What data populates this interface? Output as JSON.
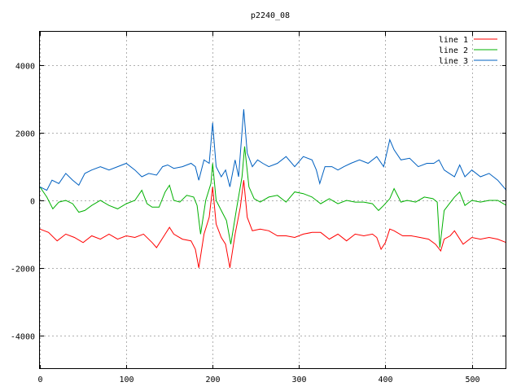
{
  "chart_data": {
    "type": "line",
    "title": "p2240_08",
    "xlabel": "",
    "ylabel": "",
    "xlim": [
      0,
      540
    ],
    "ylim": [
      -5000,
      5000
    ],
    "x_ticks": [
      0,
      100,
      200,
      300,
      400,
      500
    ],
    "y_ticks": [
      -4000,
      -2000,
      0,
      2000,
      4000
    ],
    "grid": true,
    "legend_position": "top-right",
    "series": [
      {
        "name": "line 1",
        "color": "#ff0000",
        "points": [
          [
            0,
            -850
          ],
          [
            10,
            -950
          ],
          [
            20,
            -1200
          ],
          [
            30,
            -1000
          ],
          [
            40,
            -1100
          ],
          [
            50,
            -1250
          ],
          [
            60,
            -1050
          ],
          [
            70,
            -1150
          ],
          [
            80,
            -1000
          ],
          [
            90,
            -1150
          ],
          [
            100,
            -1050
          ],
          [
            110,
            -1100
          ],
          [
            120,
            -1000
          ],
          [
            130,
            -1250
          ],
          [
            135,
            -1400
          ],
          [
            145,
            -1000
          ],
          [
            150,
            -800
          ],
          [
            155,
            -1000
          ],
          [
            165,
            -1150
          ],
          [
            175,
            -1200
          ],
          [
            180,
            -1450
          ],
          [
            184,
            -2000
          ],
          [
            190,
            -1000
          ],
          [
            196,
            -500
          ],
          [
            200,
            400
          ],
          [
            204,
            -700
          ],
          [
            210,
            -1100
          ],
          [
            215,
            -1300
          ],
          [
            220,
            -2000
          ],
          [
            226,
            -1000
          ],
          [
            232,
            -200
          ],
          [
            236,
            600
          ],
          [
            240,
            -500
          ],
          [
            246,
            -900
          ],
          [
            255,
            -850
          ],
          [
            265,
            -900
          ],
          [
            275,
            -1050
          ],
          [
            285,
            -1050
          ],
          [
            295,
            -1100
          ],
          [
            305,
            -1000
          ],
          [
            315,
            -950
          ],
          [
            325,
            -950
          ],
          [
            335,
            -1150
          ],
          [
            345,
            -1000
          ],
          [
            355,
            -1200
          ],
          [
            365,
            -1000
          ],
          [
            375,
            -1050
          ],
          [
            385,
            -1000
          ],
          [
            390,
            -1100
          ],
          [
            395,
            -1450
          ],
          [
            400,
            -1250
          ],
          [
            405,
            -850
          ],
          [
            410,
            -900
          ],
          [
            420,
            -1050
          ],
          [
            430,
            -1050
          ],
          [
            440,
            -1100
          ],
          [
            450,
            -1150
          ],
          [
            458,
            -1300
          ],
          [
            464,
            -1500
          ],
          [
            468,
            -1150
          ],
          [
            475,
            -1050
          ],
          [
            480,
            -900
          ],
          [
            490,
            -1300
          ],
          [
            500,
            -1100
          ],
          [
            510,
            -1150
          ],
          [
            520,
            -1100
          ],
          [
            530,
            -1150
          ],
          [
            540,
            -1250
          ]
        ]
      },
      {
        "name": "line 2",
        "color": "#00b000",
        "points": [
          [
            0,
            400
          ],
          [
            8,
            100
          ],
          [
            15,
            -250
          ],
          [
            22,
            -50
          ],
          [
            30,
            0
          ],
          [
            38,
            -100
          ],
          [
            45,
            -350
          ],
          [
            52,
            -300
          ],
          [
            60,
            -150
          ],
          [
            70,
            0
          ],
          [
            80,
            -150
          ],
          [
            90,
            -250
          ],
          [
            100,
            -100
          ],
          [
            110,
            0
          ],
          [
            118,
            300
          ],
          [
            124,
            -100
          ],
          [
            130,
            -200
          ],
          [
            138,
            -200
          ],
          [
            145,
            250
          ],
          [
            150,
            450
          ],
          [
            155,
            0
          ],
          [
            162,
            -50
          ],
          [
            170,
            150
          ],
          [
            178,
            100
          ],
          [
            182,
            -150
          ],
          [
            186,
            -1000
          ],
          [
            192,
            0
          ],
          [
            198,
            500
          ],
          [
            200,
            1100
          ],
          [
            204,
            0
          ],
          [
            210,
            -300
          ],
          [
            216,
            -600
          ],
          [
            221,
            -1300
          ],
          [
            228,
            -200
          ],
          [
            234,
            700
          ],
          [
            237,
            1600
          ],
          [
            242,
            400
          ],
          [
            248,
            50
          ],
          [
            255,
            -50
          ],
          [
            265,
            100
          ],
          [
            275,
            150
          ],
          [
            285,
            -50
          ],
          [
            295,
            250
          ],
          [
            305,
            200
          ],
          [
            315,
            100
          ],
          [
            325,
            -100
          ],
          [
            335,
            50
          ],
          [
            345,
            -100
          ],
          [
            355,
            0
          ],
          [
            365,
            -50
          ],
          [
            375,
            -50
          ],
          [
            385,
            -100
          ],
          [
            392,
            -300
          ],
          [
            398,
            -150
          ],
          [
            405,
            50
          ],
          [
            410,
            350
          ],
          [
            418,
            -50
          ],
          [
            425,
            0
          ],
          [
            435,
            -50
          ],
          [
            445,
            100
          ],
          [
            455,
            50
          ],
          [
            460,
            -50
          ],
          [
            463,
            -1400
          ],
          [
            468,
            -300
          ],
          [
            474,
            -100
          ],
          [
            480,
            100
          ],
          [
            486,
            250
          ],
          [
            492,
            -150
          ],
          [
            500,
            0
          ],
          [
            510,
            -50
          ],
          [
            520,
            0
          ],
          [
            530,
            0
          ],
          [
            540,
            -150
          ]
        ]
      },
      {
        "name": "line 3",
        "color": "#0060c0",
        "points": [
          [
            0,
            400
          ],
          [
            8,
            300
          ],
          [
            14,
            600
          ],
          [
            22,
            500
          ],
          [
            30,
            800
          ],
          [
            38,
            600
          ],
          [
            45,
            450
          ],
          [
            52,
            800
          ],
          [
            60,
            900
          ],
          [
            70,
            1000
          ],
          [
            80,
            900
          ],
          [
            90,
            1000
          ],
          [
            100,
            1100
          ],
          [
            110,
            900
          ],
          [
            118,
            700
          ],
          [
            126,
            800
          ],
          [
            135,
            750
          ],
          [
            142,
            1000
          ],
          [
            148,
            1050
          ],
          [
            155,
            950
          ],
          [
            165,
            1000
          ],
          [
            175,
            1100
          ],
          [
            180,
            1000
          ],
          [
            184,
            600
          ],
          [
            190,
            1200
          ],
          [
            196,
            1100
          ],
          [
            200,
            2300
          ],
          [
            204,
            1000
          ],
          [
            210,
            700
          ],
          [
            215,
            900
          ],
          [
            220,
            400
          ],
          [
            226,
            1200
          ],
          [
            230,
            700
          ],
          [
            236,
            2700
          ],
          [
            240,
            1400
          ],
          [
            246,
            1000
          ],
          [
            252,
            1200
          ],
          [
            258,
            1100
          ],
          [
            265,
            1000
          ],
          [
            275,
            1100
          ],
          [
            285,
            1300
          ],
          [
            295,
            1000
          ],
          [
            305,
            1300
          ],
          [
            315,
            1200
          ],
          [
            320,
            900
          ],
          [
            324,
            500
          ],
          [
            330,
            1000
          ],
          [
            338,
            1000
          ],
          [
            345,
            900
          ],
          [
            352,
            1000
          ],
          [
            360,
            1100
          ],
          [
            370,
            1200
          ],
          [
            380,
            1100
          ],
          [
            390,
            1300
          ],
          [
            398,
            1000
          ],
          [
            405,
            1800
          ],
          [
            410,
            1500
          ],
          [
            418,
            1200
          ],
          [
            428,
            1250
          ],
          [
            438,
            1000
          ],
          [
            448,
            1100
          ],
          [
            456,
            1100
          ],
          [
            462,
            1200
          ],
          [
            468,
            900
          ],
          [
            474,
            800
          ],
          [
            480,
            700
          ],
          [
            486,
            1050
          ],
          [
            492,
            700
          ],
          [
            500,
            900
          ],
          [
            510,
            700
          ],
          [
            520,
            800
          ],
          [
            530,
            600
          ],
          [
            540,
            300
          ]
        ]
      }
    ]
  }
}
